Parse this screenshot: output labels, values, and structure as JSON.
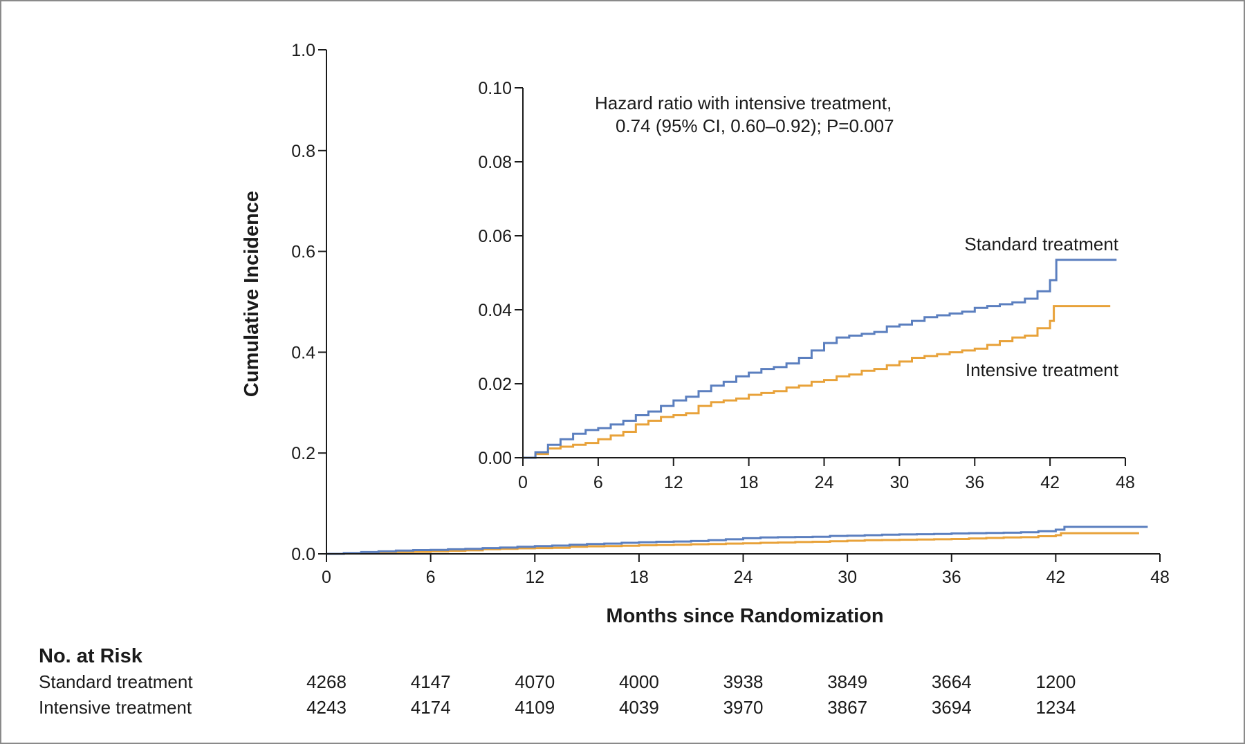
{
  "chart_data": [
    {
      "id": "main",
      "type": "line",
      "step": true,
      "ylabel": "Cumulative Incidence",
      "xlabel": "Months since Randomization",
      "xlim": [
        0,
        48
      ],
      "ylim": [
        0,
        1.0
      ],
      "xticks": [
        "0",
        "6",
        "12",
        "18",
        "24",
        "30",
        "36",
        "42",
        "48"
      ],
      "yticks": [
        "0.0",
        "0.2",
        "0.4",
        "0.6",
        "0.8",
        "1.0"
      ],
      "series": [
        {
          "key": "standard",
          "color": "#5b7fbf",
          "x": [
            0,
            1,
            2,
            3,
            4,
            5,
            6,
            7,
            8,
            9,
            10,
            11,
            12,
            13,
            14,
            15,
            16,
            17,
            18,
            19,
            20,
            21,
            22,
            23,
            24,
            25,
            26,
            27,
            28,
            29,
            30,
            31,
            32,
            33,
            34,
            35,
            36,
            37,
            38,
            39,
            40,
            41,
            42,
            42.5,
            47.3
          ],
          "y": [
            0,
            0.0015,
            0.0035,
            0.005,
            0.0065,
            0.0075,
            0.008,
            0.009,
            0.01,
            0.0115,
            0.0125,
            0.014,
            0.0155,
            0.0165,
            0.018,
            0.0195,
            0.0205,
            0.022,
            0.023,
            0.024,
            0.0245,
            0.0255,
            0.027,
            0.029,
            0.031,
            0.0325,
            0.033,
            0.0335,
            0.034,
            0.0355,
            0.036,
            0.037,
            0.038,
            0.0385,
            0.039,
            0.0395,
            0.0405,
            0.041,
            0.0415,
            0.042,
            0.043,
            0.045,
            0.048,
            0.0535,
            0.0535
          ]
        },
        {
          "key": "intensive",
          "color": "#e8a23a",
          "x": [
            0,
            1,
            2,
            3,
            4,
            5,
            6,
            7,
            8,
            9,
            10,
            11,
            12,
            13,
            14,
            15,
            16,
            17,
            18,
            19,
            20,
            21,
            22,
            23,
            24,
            25,
            26,
            27,
            28,
            29,
            30,
            31,
            32,
            33,
            34,
            35,
            36,
            37,
            38,
            39,
            40,
            41,
            42,
            42.3,
            46.8
          ],
          "y": [
            0,
            0.001,
            0.0025,
            0.003,
            0.0035,
            0.004,
            0.005,
            0.006,
            0.007,
            0.009,
            0.01,
            0.011,
            0.0115,
            0.012,
            0.014,
            0.015,
            0.0155,
            0.016,
            0.017,
            0.0175,
            0.018,
            0.019,
            0.0195,
            0.0205,
            0.021,
            0.022,
            0.0225,
            0.0235,
            0.024,
            0.025,
            0.026,
            0.027,
            0.0275,
            0.028,
            0.0285,
            0.029,
            0.0295,
            0.0305,
            0.0315,
            0.0325,
            0.033,
            0.035,
            0.037,
            0.041,
            0.041
          ]
        }
      ]
    },
    {
      "id": "inset",
      "type": "line",
      "step": true,
      "xlim": [
        0,
        48
      ],
      "ylim": [
        0,
        0.1
      ],
      "xticks": [
        "0",
        "6",
        "12",
        "18",
        "24",
        "30",
        "36",
        "42",
        "48"
      ],
      "yticks": [
        "0.00",
        "0.02",
        "0.04",
        "0.06",
        "0.08",
        "0.10"
      ],
      "annotation": [
        "Hazard ratio with intensive treatment,",
        "0.74 (95% CI, 0.60–0.92); P=0.007"
      ],
      "series": [
        {
          "name": "Standard treatment",
          "key": "standard",
          "color": "#5b7fbf"
        },
        {
          "name": "Intensive treatment",
          "key": "intensive",
          "color": "#e8a23a"
        }
      ]
    }
  ],
  "risk_table": {
    "heading": "No. at Risk",
    "rows": [
      {
        "label": "Standard treatment",
        "values": [
          "4268",
          "4147",
          "4070",
          "4000",
          "3938",
          "3849",
          "3664",
          "1200"
        ]
      },
      {
        "label": "Intensive treatment",
        "values": [
          "4243",
          "4174",
          "4109",
          "4039",
          "3970",
          "3867",
          "3694",
          "1234"
        ]
      }
    ]
  }
}
